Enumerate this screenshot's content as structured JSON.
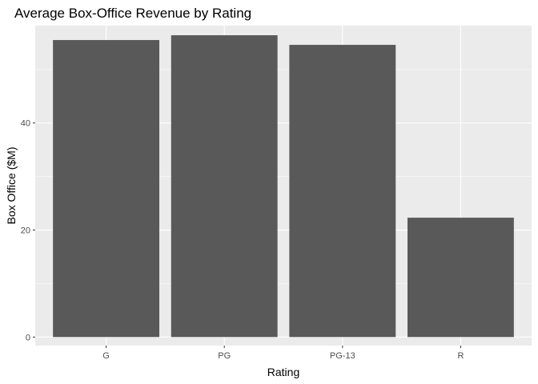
{
  "chart_data": {
    "type": "bar",
    "title": "Average Box-Office Revenue by Rating",
    "xlabel": "Rating",
    "ylabel": "Box Office ($M)",
    "categories": [
      "G",
      "PG",
      "PG-13",
      "R"
    ],
    "values": [
      55.5,
      56.4,
      54.6,
      22.3
    ],
    "ylim": [
      -1.6,
      58.2
    ],
    "yticks": [
      0,
      20,
      40
    ],
    "grid": true,
    "legend": "none",
    "colors": {
      "bar": "#595959",
      "panel": "#ebebeb",
      "grid_major": "#ffffff",
      "tick": "#333333"
    }
  }
}
